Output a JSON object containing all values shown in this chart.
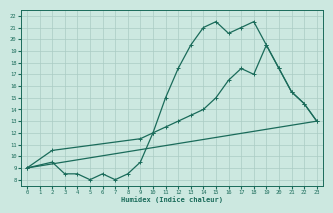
{
  "xlabel": "Humidex (Indice chaleur)",
  "bg_color": "#cce8e0",
  "line_color": "#1a6b5a",
  "grid_color": "#aaccc4",
  "xlim": [
    -0.5,
    23.5
  ],
  "ylim": [
    7.5,
    22.5
  ],
  "xticks": [
    0,
    1,
    2,
    3,
    4,
    5,
    6,
    7,
    8,
    9,
    10,
    11,
    12,
    13,
    14,
    15,
    16,
    17,
    18,
    19,
    20,
    21,
    22,
    23
  ],
  "yticks": [
    8,
    9,
    10,
    11,
    12,
    13,
    14,
    15,
    16,
    17,
    18,
    19,
    20,
    21,
    22
  ],
  "line1_x": [
    0,
    2,
    3,
    4,
    5,
    6,
    7,
    8,
    9,
    10,
    11,
    12,
    13,
    14,
    15,
    16,
    17,
    18,
    19,
    20,
    21,
    22,
    23
  ],
  "line1_y": [
    9.0,
    9.5,
    8.5,
    8.5,
    8.0,
    8.5,
    8.0,
    8.5,
    9.5,
    12.0,
    15.0,
    17.5,
    19.5,
    21.0,
    21.5,
    20.5,
    21.0,
    21.5,
    19.5,
    17.5,
    15.5,
    14.5,
    13.0
  ],
  "line2_x": [
    0,
    23
  ],
  "line2_y": [
    9.0,
    13.0
  ],
  "line3_x": [
    0,
    2,
    9,
    10,
    11,
    12,
    13,
    14,
    15,
    16,
    17,
    18,
    19,
    20,
    21,
    22,
    23
  ],
  "line3_y": [
    9.0,
    10.5,
    11.5,
    12.0,
    12.5,
    13.0,
    13.5,
    14.0,
    15.0,
    16.5,
    17.5,
    17.0,
    19.5,
    17.5,
    15.5,
    14.5,
    13.0
  ]
}
